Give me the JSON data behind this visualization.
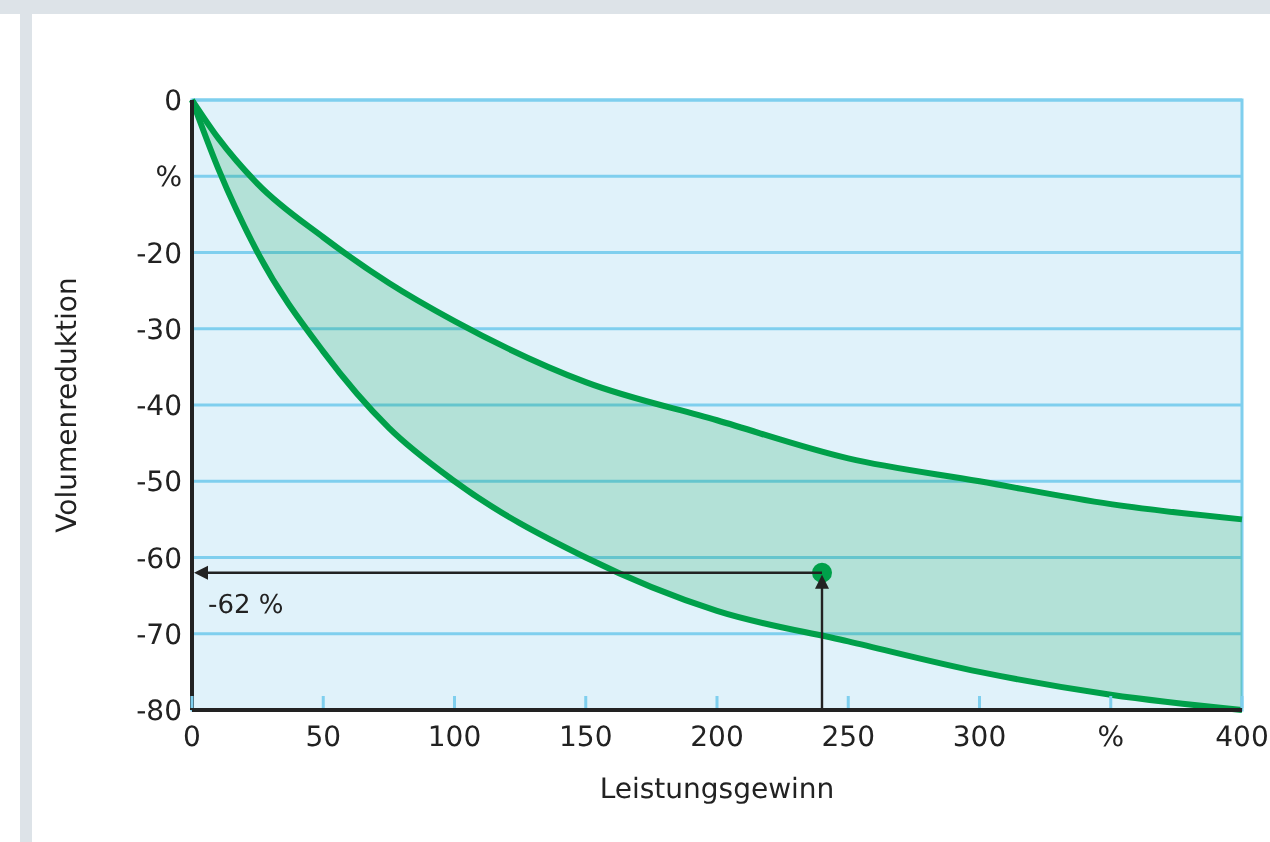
{
  "chart_data": {
    "type": "line",
    "xlabel": "Leistungsgewinn",
    "ylabel": "Volumenreduktion",
    "x": [
      0,
      10,
      25,
      50,
      75,
      100,
      150,
      200,
      250,
      300,
      350,
      400
    ],
    "series": [
      {
        "color": "#00a04a",
        "marker": "none",
        "values": [
          0,
          -5,
          -11,
          -18,
          -24,
          -29,
          -37,
          -42,
          -47,
          -50,
          -53,
          -55
        ],
        "lower": [
          0,
          -9,
          -20,
          -33,
          -43,
          -50,
          -60,
          -67,
          -71,
          -75,
          -78,
          -80
        ],
        "upper": [
          0,
          -5,
          -11,
          -18,
          -24,
          -29,
          -37,
          -42,
          -47,
          -50,
          -53,
          -55
        ]
      },
      {
        "color": "#00a04a",
        "marker": "none",
        "values": [
          0,
          -9,
          -20,
          -33,
          -43,
          -50,
          -60,
          -67,
          -71,
          -75,
          -78,
          -80
        ]
      },
      {
        "type": "scatter",
        "marker": "circle",
        "color": "#00a04a",
        "x": [
          240
        ],
        "values": [
          -62
        ]
      }
    ],
    "xlim": [
      0,
      400
    ],
    "xticks": [
      0,
      50,
      100,
      150,
      200,
      250,
      300,
      {
        "value": 350,
        "label": "%"
      },
      400
    ],
    "ylim": [
      -80,
      0
    ],
    "yticks": [
      0,
      {
        "value": -10,
        "label": "%"
      },
      -20,
      -30,
      -40,
      -50,
      -60,
      -70,
      -80
    ],
    "grid": "y",
    "annotations": [
      {
        "text": "-62 %",
        "x": 240,
        "y": -62
      }
    ]
  }
}
